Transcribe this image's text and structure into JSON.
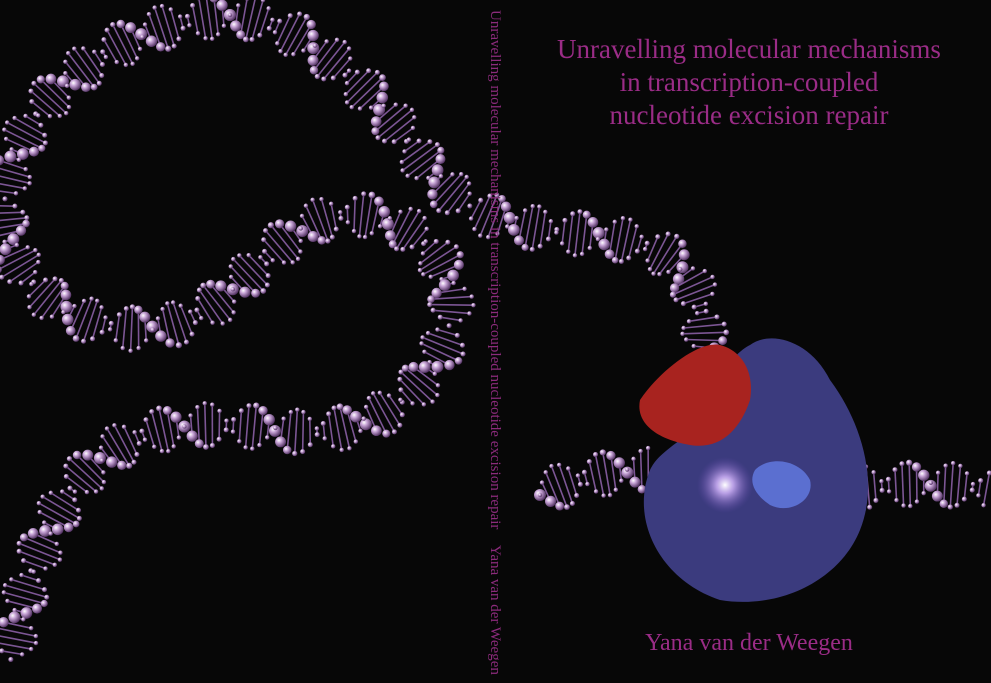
{
  "cover": {
    "front": {
      "title_lines": [
        "Unravelling molecular mechanisms",
        "in transcription-coupled",
        "nucleotide excision repair"
      ],
      "author": "Yana van der Weegen"
    },
    "spine": {
      "title": "Unravelling molecular mechanisms in transcription-coupled nucleotide excision repair",
      "author": "Yana van der Weegen"
    }
  }
}
